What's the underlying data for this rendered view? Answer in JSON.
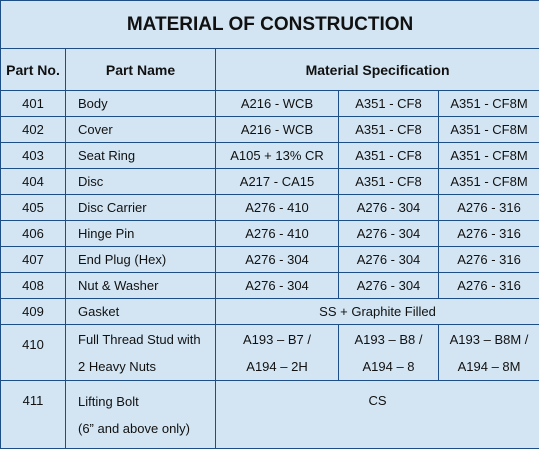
{
  "table": {
    "title": "MATERIAL OF CONSTRUCTION",
    "headers": [
      "Part No.",
      "Part Name",
      "Material Specification"
    ],
    "rows": [
      {
        "part_no": "401",
        "part_name": [
          "Body"
        ],
        "specs": [
          [
            "A216 - WCB"
          ],
          [
            "A351 - CF8"
          ],
          [
            "A351 - CF8M"
          ]
        ]
      },
      {
        "part_no": "402",
        "part_name": [
          "Cover"
        ],
        "specs": [
          [
            "A216 - WCB"
          ],
          [
            "A351 - CF8"
          ],
          [
            "A351 - CF8M"
          ]
        ]
      },
      {
        "part_no": "403",
        "part_name": [
          "Seat Ring"
        ],
        "specs": [
          [
            "A105 + 13% CR"
          ],
          [
            "A351 - CF8"
          ],
          [
            "A351 - CF8M"
          ]
        ]
      },
      {
        "part_no": "404",
        "part_name": [
          "Disc"
        ],
        "specs": [
          [
            "A217 - CA15"
          ],
          [
            "A351 - CF8"
          ],
          [
            "A351 - CF8M"
          ]
        ]
      },
      {
        "part_no": "405",
        "part_name": [
          "Disc Carrier"
        ],
        "specs": [
          [
            "A276 - 410"
          ],
          [
            "A276 - 304"
          ],
          [
            "A276 - 316"
          ]
        ]
      },
      {
        "part_no": "406",
        "part_name": [
          "Hinge Pin"
        ],
        "specs": [
          [
            "A276 - 410"
          ],
          [
            "A276 - 304"
          ],
          [
            "A276 - 316"
          ]
        ]
      },
      {
        "part_no": "407",
        "part_name": [
          "End Plug (Hex)"
        ],
        "specs": [
          [
            "A276 - 304"
          ],
          [
            "A276 - 304"
          ],
          [
            "A276 - 316"
          ]
        ]
      },
      {
        "part_no": "408",
        "part_name": [
          "Nut & Washer"
        ],
        "specs": [
          [
            "A276 - 304"
          ],
          [
            "A276 - 304"
          ],
          [
            "A276 - 316"
          ]
        ]
      },
      {
        "part_no": "409",
        "part_name": [
          "Gasket"
        ],
        "specs": [
          [
            "SS + Graphite Filled"
          ]
        ]
      },
      {
        "part_no": "410",
        "part_name": [
          "Full Thread Stud with",
          "2 Heavy Nuts"
        ],
        "specs": [
          [
            "A193 – B7 /",
            "A194 – 2H"
          ],
          [
            "A193 – B8 /",
            "A194 – 8"
          ],
          [
            "A193 – B8M /",
            "A194 – 8M"
          ]
        ]
      },
      {
        "part_no": "411",
        "part_name": [
          "Lifting Bolt",
          "(6” and above only)"
        ],
        "specs": [
          [
            "CS"
          ]
        ]
      }
    ]
  }
}
